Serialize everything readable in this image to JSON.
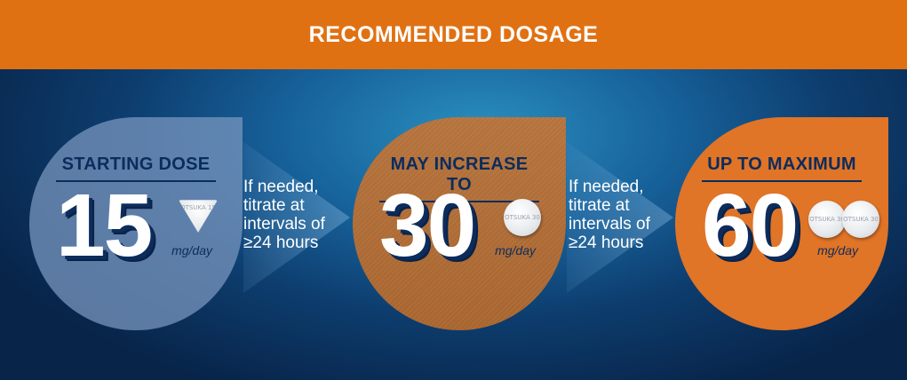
{
  "header": {
    "title": "RECOMMENDED DOSAGE"
  },
  "steps": [
    {
      "label": "STARTING DOSE",
      "value": "15",
      "unit": "mg/day",
      "pill_text": "OTSUKA 15",
      "color": "#7a96be"
    },
    {
      "label": "MAY INCREASE TO",
      "value": "30",
      "unit": "mg/day",
      "pill_text": "OTSUKA 30",
      "color": "#b3703a"
    },
    {
      "label": "UP TO MAXIMUM",
      "value": "60",
      "unit": "mg/day",
      "pill_text": "OTSUKA 30",
      "color": "#e07427"
    }
  ],
  "transitions": [
    {
      "line1": "If needed,",
      "line2": "titrate at",
      "line3": "intervals of",
      "line4": "≥24 hours"
    },
    {
      "line1": "If needed,",
      "line2": "titrate at",
      "line3": "intervals of",
      "line4": "≥24 hours"
    }
  ],
  "colors": {
    "header": "#e07113",
    "accent_dark": "#0c2c5c"
  },
  "icons": {
    "pill": "pill-icon",
    "tablet": "tablet-icon"
  }
}
